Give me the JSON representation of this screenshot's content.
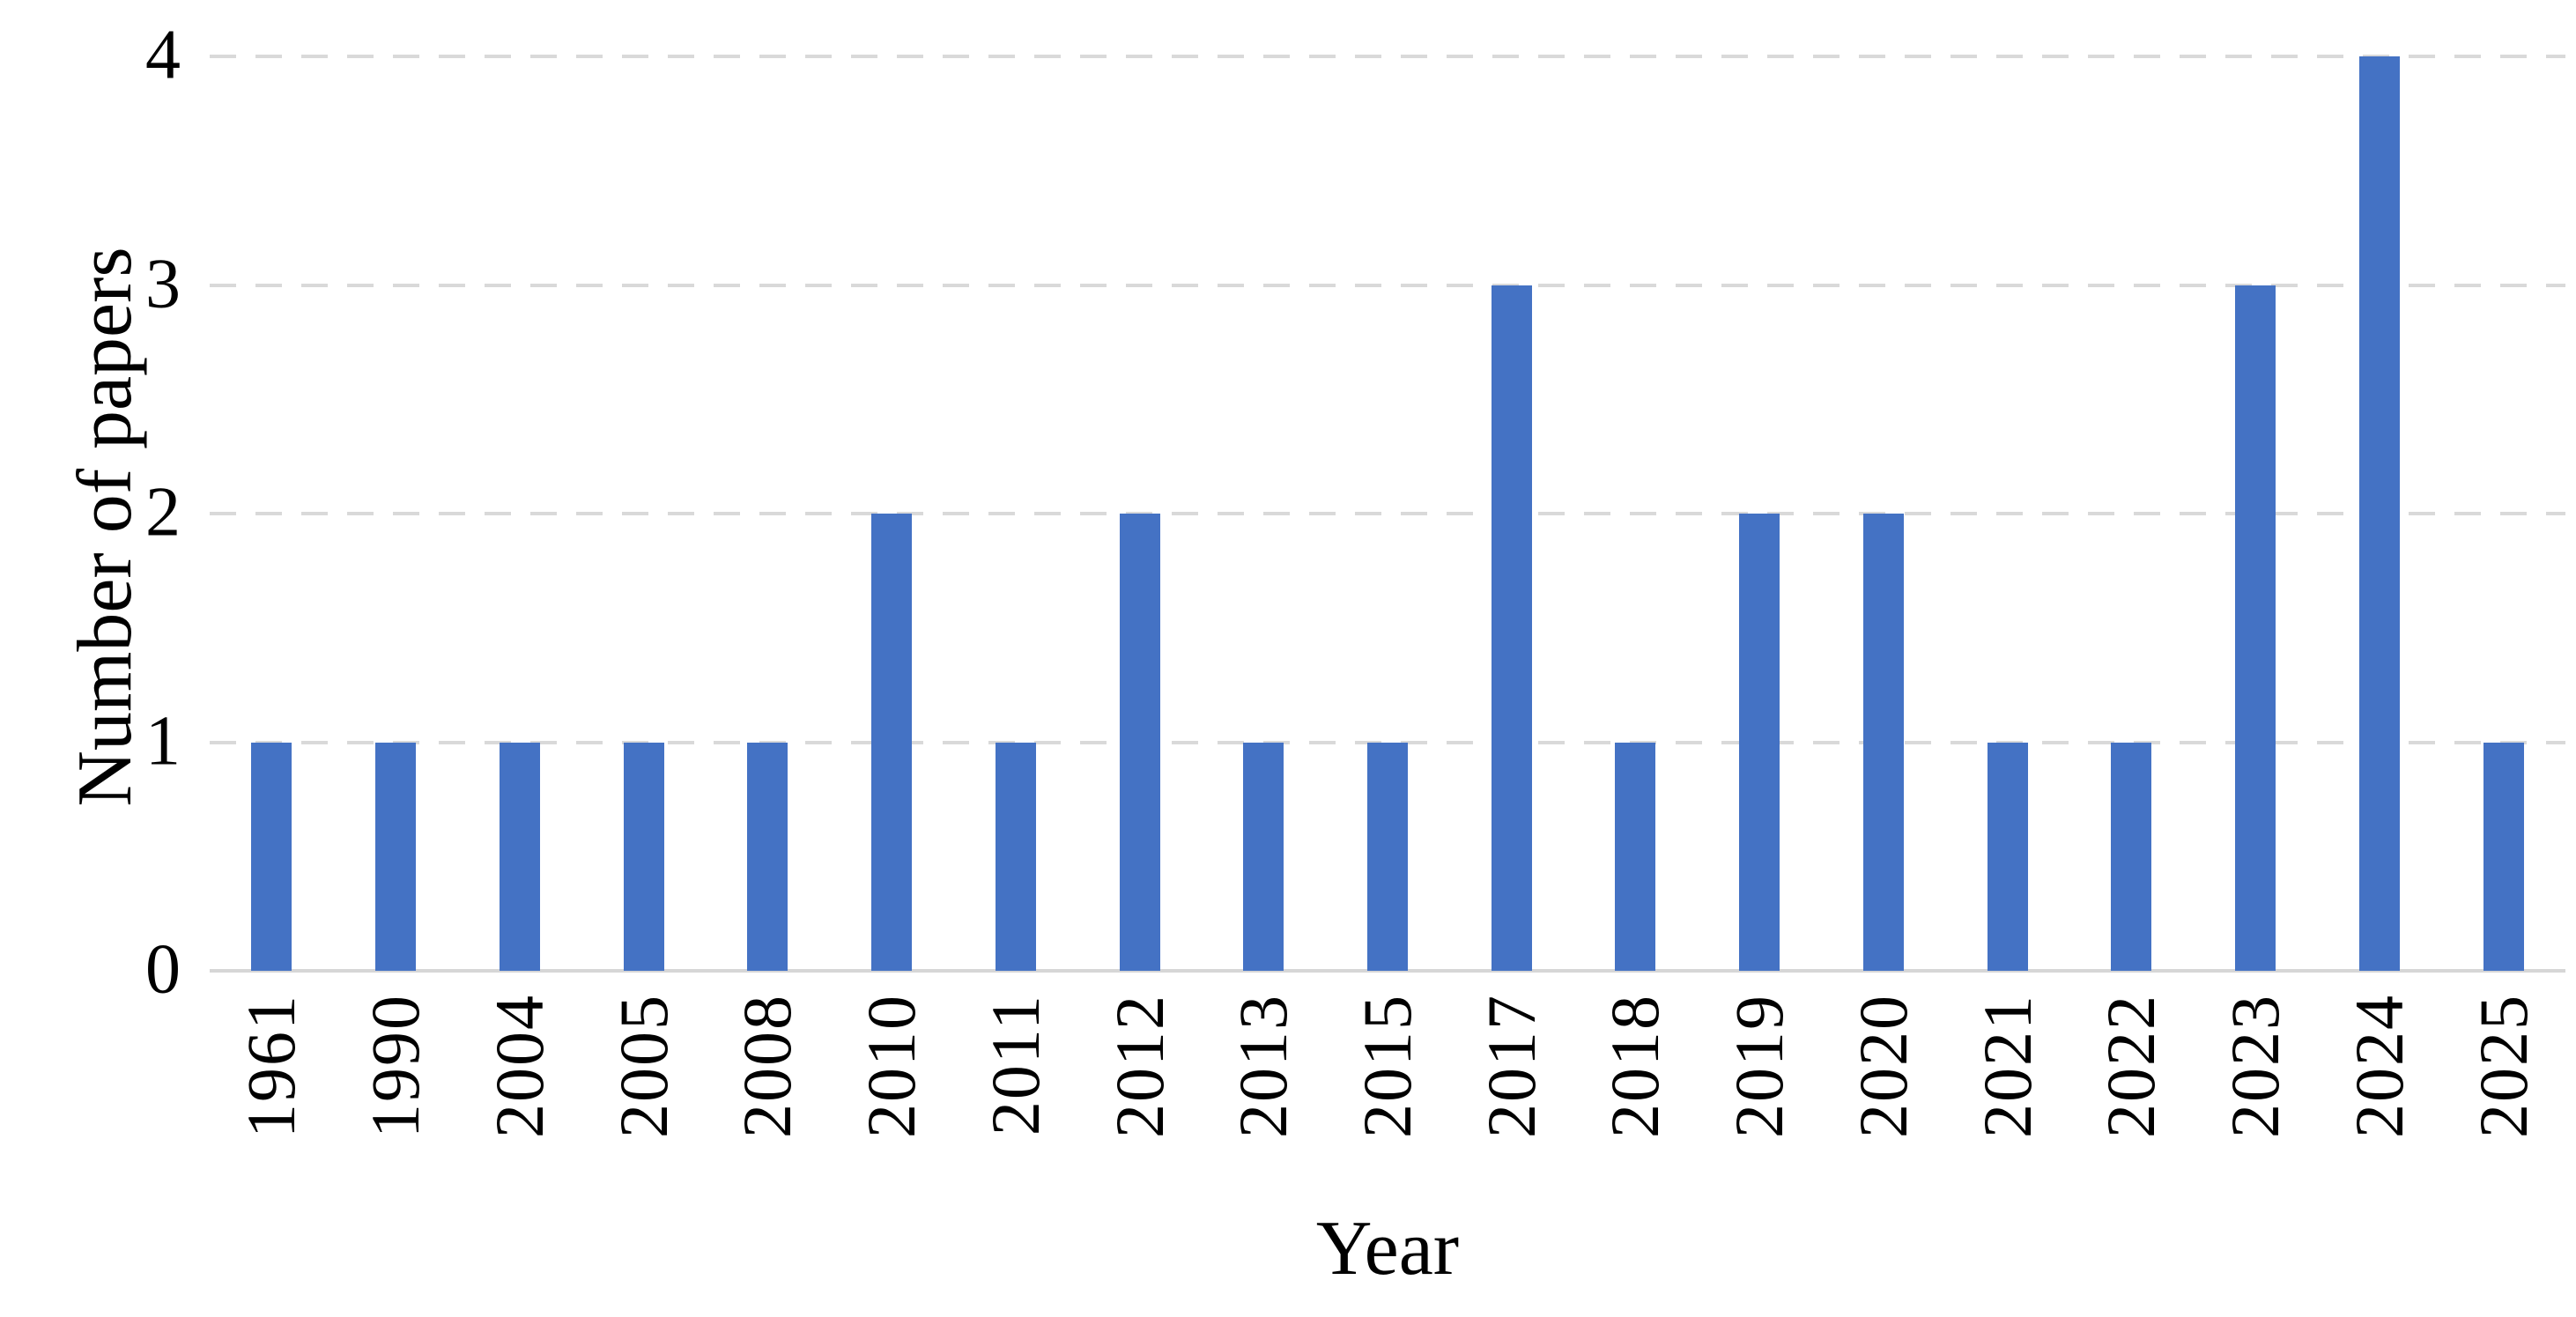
{
  "figure": {
    "background": "#ffffff"
  },
  "chart_data": {
    "type": "bar",
    "title": "",
    "xlabel": "Year",
    "ylabel": "Number of papers",
    "categories": [
      "1961",
      "1990",
      "2004",
      "2005",
      "2008",
      "2010",
      "2011",
      "2012",
      "2013",
      "2015",
      "2017",
      "2018",
      "2019",
      "2020",
      "2021",
      "2022",
      "2023",
      "2024",
      "2025"
    ],
    "values": [
      1,
      1,
      1,
      1,
      1,
      2,
      1,
      2,
      1,
      1,
      3,
      1,
      2,
      2,
      1,
      1,
      3,
      4,
      1
    ],
    "ylim": [
      0,
      4
    ],
    "yticks": [
      0,
      1,
      2,
      3,
      4
    ],
    "grid": {
      "horizontal": true,
      "style": "dashed",
      "color": "#D9D9D9"
    },
    "bar_color": "#4472C4",
    "axis_line_color": "#D6D6D6",
    "text_color": "#000000",
    "legend": "none",
    "x_tick_rotation": 90
  }
}
